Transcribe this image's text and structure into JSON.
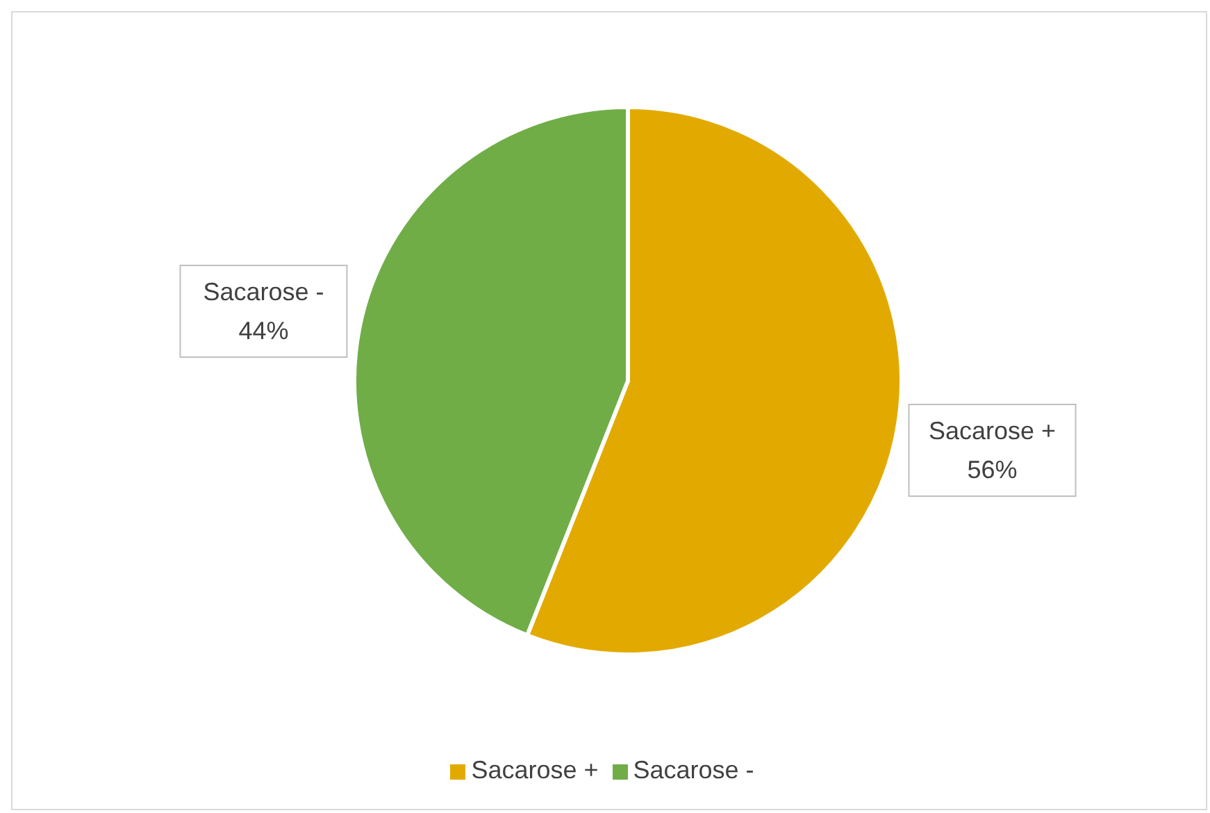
{
  "chart_data": {
    "type": "pie",
    "categories": [
      "Sacarose +",
      "Sacarose -"
    ],
    "values": [
      56,
      44
    ],
    "colors": [
      "#e2aa00",
      "#70ad47"
    ],
    "value_labels": [
      "56%",
      "44%"
    ],
    "legend": "bottom"
  }
}
